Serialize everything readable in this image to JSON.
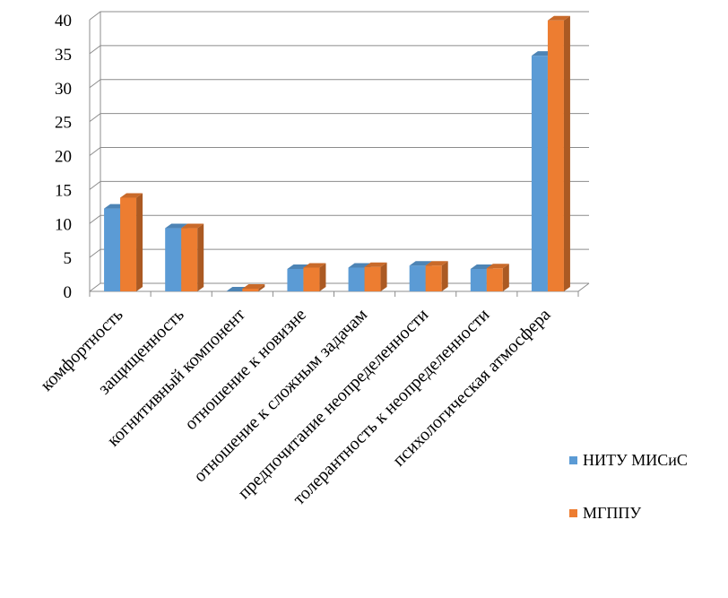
{
  "chart_data": {
    "type": "bar",
    "categories": [
      "комфортность",
      "защищенность",
      "когнитивный компонент",
      "отношение к новизне",
      "отношение к сложным задачам",
      "предпочитание неопределенности",
      "толерантность к неопределенности",
      "психологическая атмосфера"
    ],
    "series": [
      {
        "name": "НИТУ МИСиС",
        "color": "#5B9BD5",
        "values": [
          12.2,
          9.3,
          0,
          3.3,
          3.5,
          3.8,
          3.3,
          34.7
        ]
      },
      {
        "name": "МГППУ",
        "color": "#ED7D31",
        "values": [
          13.8,
          9.3,
          0.4,
          3.5,
          3.6,
          3.8,
          3.4,
          39.9
        ]
      }
    ],
    "ylim": [
      0,
      40
    ],
    "yticks": [
      "0",
      "5",
      "10",
      "15",
      "20",
      "25",
      "30",
      "35",
      "40"
    ],
    "grid": true,
    "legend_position": "right",
    "style": "3d-clustered-column"
  }
}
